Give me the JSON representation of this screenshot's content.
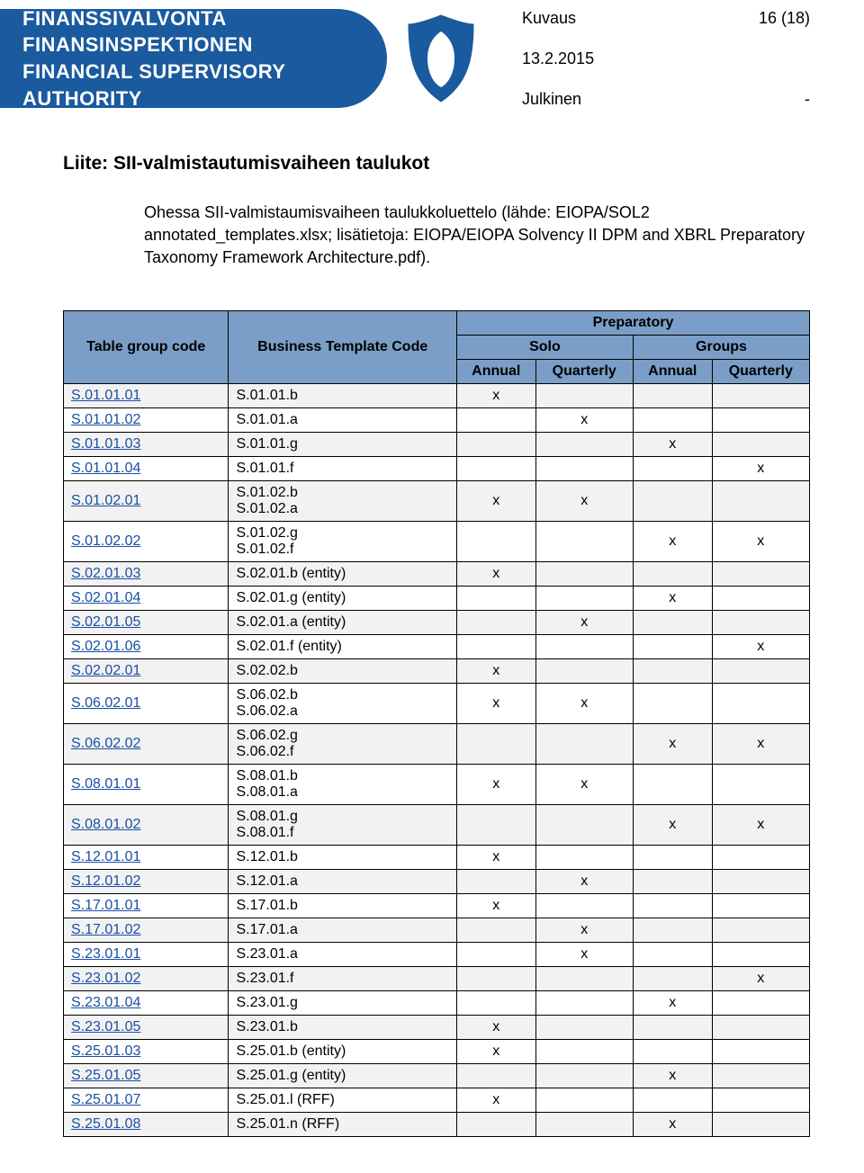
{
  "header": {
    "org_line1": "FINANSSIVALVONTA",
    "org_line2": "FINANSINSPEKTIONEN",
    "org_line3": "FINANCIAL SUPERVISORY AUTHORITY",
    "doc_type": "Kuvaus",
    "page_count": "16 (18)",
    "date": "13.2.2015",
    "classification": "Julkinen",
    "dash": "-"
  },
  "body": {
    "section_title": "Liite: SII-valmistautumisvaiheen taulukot",
    "intro": "Ohessa SII-valmistaumisvaiheen taulukkoluettelo (lähde: EIOPA/SOL2 annotated_templates.xlsx; lisätietoja: EIOPA/EIOPA Solvency II DPM and XBRL Preparatory Taxonomy Framework Architecture.pdf)."
  },
  "table": {
    "header_preparatory": "Preparatory",
    "header_solo": "Solo",
    "header_groups": "Groups",
    "header_groupcode": "Table group code",
    "header_template": "Business Template Code",
    "header_annual": "Annual",
    "header_quarterly": "Quarterly",
    "mark": "x",
    "rows": [
      {
        "code": "S.01.01.01",
        "tpl": "S.01.01.b",
        "sa": true,
        "sq": false,
        "ga": false,
        "gq": false,
        "shade": true
      },
      {
        "code": "S.01.01.02",
        "tpl": "S.01.01.a",
        "sa": false,
        "sq": true,
        "ga": false,
        "gq": false,
        "shade": false
      },
      {
        "code": "S.01.01.03",
        "tpl": "S.01.01.g",
        "sa": false,
        "sq": false,
        "ga": true,
        "gq": false,
        "shade": true
      },
      {
        "code": "S.01.01.04",
        "tpl": "S.01.01.f",
        "sa": false,
        "sq": false,
        "ga": false,
        "gq": true,
        "shade": false
      },
      {
        "code": "S.01.02.01",
        "tpl": "S.01.02.b\nS.01.02.a",
        "sa": true,
        "sq": true,
        "ga": false,
        "gq": false,
        "shade": true
      },
      {
        "code": "S.01.02.02",
        "tpl": "S.01.02.g\nS.01.02.f",
        "sa": false,
        "sq": false,
        "ga": true,
        "gq": true,
        "shade": false
      },
      {
        "code": "S.02.01.03",
        "tpl": "S.02.01.b (entity)",
        "sa": true,
        "sq": false,
        "ga": false,
        "gq": false,
        "shade": true
      },
      {
        "code": "S.02.01.04",
        "tpl": "S.02.01.g (entity)",
        "sa": false,
        "sq": false,
        "ga": true,
        "gq": false,
        "shade": false
      },
      {
        "code": "S.02.01.05",
        "tpl": "S.02.01.a (entity)",
        "sa": false,
        "sq": true,
        "ga": false,
        "gq": false,
        "shade": true
      },
      {
        "code": "S.02.01.06",
        "tpl": "S.02.01.f (entity)",
        "sa": false,
        "sq": false,
        "ga": false,
        "gq": true,
        "shade": false
      },
      {
        "code": "S.02.02.01",
        "tpl": "S.02.02.b",
        "sa": true,
        "sq": false,
        "ga": false,
        "gq": false,
        "shade": true
      },
      {
        "code": "S.06.02.01",
        "tpl": "S.06.02.b\nS.06.02.a",
        "sa": true,
        "sq": true,
        "ga": false,
        "gq": false,
        "shade": false
      },
      {
        "code": "S.06.02.02",
        "tpl": "S.06.02.g\nS.06.02.f",
        "sa": false,
        "sq": false,
        "ga": true,
        "gq": true,
        "shade": true
      },
      {
        "code": "S.08.01.01",
        "tpl": "S.08.01.b\nS.08.01.a",
        "sa": true,
        "sq": true,
        "ga": false,
        "gq": false,
        "shade": false
      },
      {
        "code": "S.08.01.02",
        "tpl": "S.08.01.g\nS.08.01.f",
        "sa": false,
        "sq": false,
        "ga": true,
        "gq": true,
        "shade": true
      },
      {
        "code": "S.12.01.01",
        "tpl": "S.12.01.b",
        "sa": true,
        "sq": false,
        "ga": false,
        "gq": false,
        "shade": false
      },
      {
        "code": "S.12.01.02",
        "tpl": "S.12.01.a",
        "sa": false,
        "sq": true,
        "ga": false,
        "gq": false,
        "shade": true
      },
      {
        "code": "S.17.01.01",
        "tpl": "S.17.01.b",
        "sa": true,
        "sq": false,
        "ga": false,
        "gq": false,
        "shade": false
      },
      {
        "code": "S.17.01.02",
        "tpl": "S.17.01.a",
        "sa": false,
        "sq": true,
        "ga": false,
        "gq": false,
        "shade": true
      },
      {
        "code": "S.23.01.01",
        "tpl": "S.23.01.a",
        "sa": false,
        "sq": true,
        "ga": false,
        "gq": false,
        "shade": false
      },
      {
        "code": "S.23.01.02",
        "tpl": "S.23.01.f",
        "sa": false,
        "sq": false,
        "ga": false,
        "gq": true,
        "shade": true
      },
      {
        "code": "S.23.01.04",
        "tpl": "S.23.01.g",
        "sa": false,
        "sq": false,
        "ga": true,
        "gq": false,
        "shade": false
      },
      {
        "code": "S.23.01.05",
        "tpl": "S.23.01.b",
        "sa": true,
        "sq": false,
        "ga": false,
        "gq": false,
        "shade": true
      },
      {
        "code": "S.25.01.03",
        "tpl": "S.25.01.b (entity)",
        "sa": true,
        "sq": false,
        "ga": false,
        "gq": false,
        "shade": false
      },
      {
        "code": "S.25.01.05",
        "tpl": "S.25.01.g (entity)",
        "sa": false,
        "sq": false,
        "ga": true,
        "gq": false,
        "shade": true
      },
      {
        "code": "S.25.01.07",
        "tpl": "S.25.01.l (RFF)",
        "sa": true,
        "sq": false,
        "ga": false,
        "gq": false,
        "shade": false
      },
      {
        "code": "S.25.01.08",
        "tpl": "S.25.01.n (RFF)",
        "sa": false,
        "sq": false,
        "ga": true,
        "gq": false,
        "shade": true
      }
    ]
  }
}
